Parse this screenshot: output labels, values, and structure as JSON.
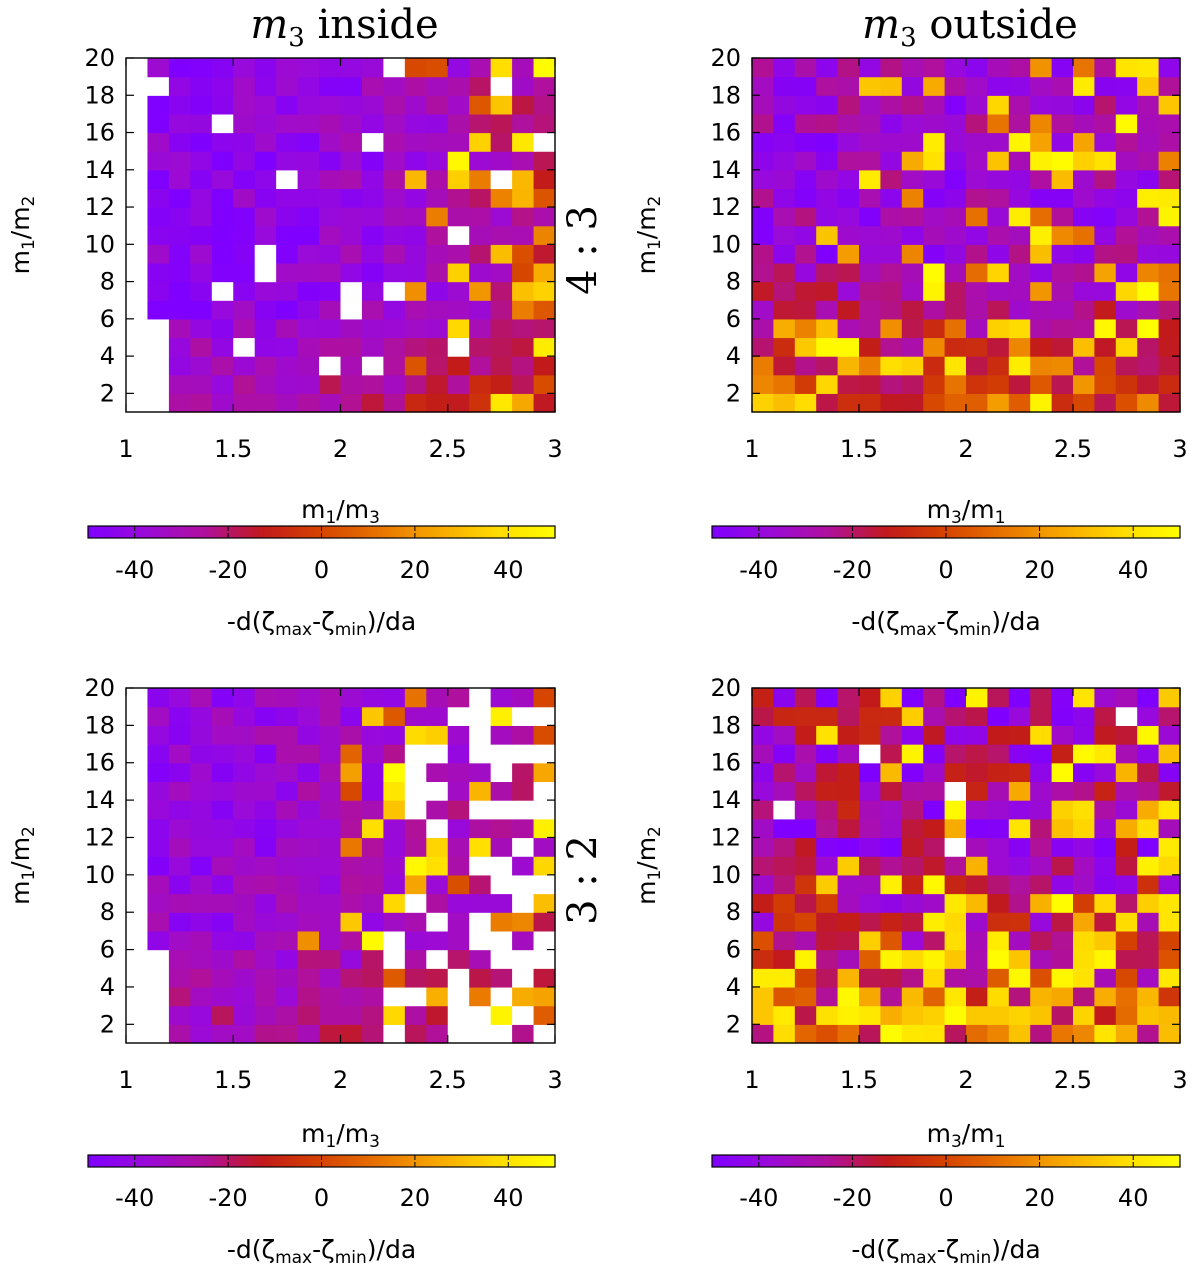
{
  "figure": {
    "columns": [
      {
        "title_symbol": "m",
        "title_sub": "3",
        "title_word": " inside",
        "text": "m3 inside"
      },
      {
        "title_symbol": "m",
        "title_sub": "3",
        "title_word": " outside",
        "text": "m3 outside"
      }
    ],
    "rows": [
      {
        "resonance_label": "4 : 3"
      },
      {
        "resonance_label": "3 : 2"
      }
    ],
    "colorbar": {
      "label": "-d(ζmax-ζmin)/da",
      "label_parts": [
        "-d(ζ",
        "max",
        "-ζ",
        "min",
        ")/da"
      ],
      "range": [
        -50,
        50
      ],
      "ticks": [
        -40,
        -20,
        0,
        20,
        40
      ],
      "tick_labels": [
        "-40",
        "-20",
        "0",
        "20",
        "40"
      ],
      "colormap": [
        "#7f00ff",
        "#9a0ad8",
        "#b0109c",
        "#c21a1a",
        "#d54400",
        "#e87400",
        "#f7a800",
        "#ffdb00",
        "#ffff00"
      ]
    }
  },
  "chart_data": [
    {
      "type": "heatmap",
      "id": "top-left",
      "panel": "4:3, m3 inside",
      "xlabel": "m1/m3",
      "ylabel": "m1/m2",
      "xlabel_parts": [
        "m",
        "1",
        "/m",
        "3"
      ],
      "ylabel_parts": [
        "m",
        "1",
        "/m",
        "2"
      ],
      "xlim": [
        1,
        3
      ],
      "ylim": [
        1,
        20
      ],
      "xticks": [
        1,
        1.5,
        2,
        2.5,
        3
      ],
      "xtick_labels": [
        "1",
        "1.5",
        "2",
        "2.5",
        "3"
      ],
      "yticks": [
        2,
        4,
        6,
        8,
        10,
        12,
        14,
        16,
        18,
        20
      ],
      "ytick_labels": [
        "2",
        "4",
        "6",
        "8",
        "10",
        "12",
        "14",
        "16",
        "18",
        "20"
      ],
      "color_label": "-d(ζmax-ζmin)/da",
      "color_range": [
        -50,
        50
      ],
      "grid": {
        "nx": 20,
        "ny": 19,
        "cell_dx": 0.1,
        "cell_dy": 1.0
      },
      "no_data_region": "white where m1/m3 < ~1.15 (and < ~1.25 for m1/m2 < 6)",
      "pattern": {
        "seed": 11,
        "base_start": -44,
        "base_end": -20,
        "base_gamma": 2.4,
        "low_m_boost": 18,
        "low_m_threshold": 6,
        "jitter": 10,
        "hot_start": 2.2,
        "hot_end": 3.0,
        "hot_frac_max": 0.55,
        "hot_min": 0,
        "hot_max": 50,
        "white_frac": 0.03,
        "empty_x_below": 1.15,
        "empty_x_below_low_m": 1.25,
        "empty_low_m_threshold": 6
      }
    },
    {
      "type": "heatmap",
      "id": "top-right",
      "panel": "4:3, m3 outside",
      "xlabel": "m3/m1",
      "ylabel": "m1/m2",
      "xlabel_parts": [
        "m",
        "3",
        "/m",
        "1"
      ],
      "ylabel_parts": [
        "m",
        "1",
        "/m",
        "2"
      ],
      "xlim": [
        1,
        3
      ],
      "ylim": [
        1,
        20
      ],
      "xticks": [
        1,
        1.5,
        2,
        2.5,
        3
      ],
      "xtick_labels": [
        "1",
        "1.5",
        "2",
        "2.5",
        "3"
      ],
      "yticks": [
        2,
        4,
        6,
        8,
        10,
        12,
        14,
        16,
        18,
        20
      ],
      "ytick_labels": [
        "2",
        "4",
        "6",
        "8",
        "10",
        "12",
        "14",
        "16",
        "18",
        "20"
      ],
      "color_label": "-d(ζmax-ζmin)/da",
      "color_range": [
        -50,
        50
      ],
      "grid": {
        "nx": 20,
        "ny": 19,
        "cell_dx": 0.1,
        "cell_dy": 1.0
      },
      "pattern": {
        "seed": 23,
        "base_start": -36,
        "base_end": -34,
        "base_gamma": 1.0,
        "low_m_boost": 32,
        "low_m_threshold": 9,
        "jitter": 14,
        "hot_start": 1.0,
        "hot_end": 3.0,
        "hot_frac_max": 0.35,
        "hot_min": 10,
        "hot_max": 50,
        "low_hot_frac": 0.35,
        "low_hot_threshold": 6,
        "white_frac": 0.0
      }
    },
    {
      "type": "heatmap",
      "id": "bottom-left",
      "panel": "3:2, m3 inside",
      "xlabel": "m1/m3",
      "ylabel": "m1/m2",
      "xlabel_parts": [
        "m",
        "1",
        "/m",
        "3"
      ],
      "ylabel_parts": [
        "m",
        "1",
        "/m",
        "2"
      ],
      "xlim": [
        1,
        3
      ],
      "ylim": [
        1,
        20
      ],
      "xticks": [
        1,
        1.5,
        2,
        2.5,
        3
      ],
      "xtick_labels": [
        "1",
        "1.5",
        "2",
        "2.5",
        "3"
      ],
      "yticks": [
        2,
        4,
        6,
        8,
        10,
        12,
        14,
        16,
        18,
        20
      ],
      "ytick_labels": [
        "2",
        "4",
        "6",
        "8",
        "10",
        "12",
        "14",
        "16",
        "18",
        "20"
      ],
      "color_label": "-d(ζmax-ζmin)/da",
      "color_range": [
        -50,
        50
      ],
      "grid": {
        "nx": 20,
        "ny": 19,
        "cell_dx": 0.1,
        "cell_dy": 1.0
      },
      "no_data_region": "white where m1/m3 < ~1.15 (and < ~1.25 for m1/m2 < 6); many white cells beyond m1/m3 ~ 2.3",
      "pattern": {
        "seed": 37,
        "base_start": -40,
        "base_end": -28,
        "base_gamma": 1.4,
        "low_m_boost": 12,
        "low_m_threshold": 8,
        "jitter": 10,
        "hot_start": 1.8,
        "hot_end": 3.0,
        "hot_frac_max": 0.45,
        "hot_min": 0,
        "hot_max": 50,
        "white_start": 2.2,
        "white_frac": 0.4,
        "empty_x_below": 1.15,
        "empty_x_below_low_m": 1.25,
        "empty_low_m_threshold": 6
      }
    },
    {
      "type": "heatmap",
      "id": "bottom-right",
      "panel": "3:2, m3 outside",
      "xlabel": "m3/m1",
      "ylabel": "m1/m2",
      "xlabel_parts": [
        "m",
        "3",
        "/m",
        "1"
      ],
      "ylabel_parts": [
        "m",
        "1",
        "/m",
        "2"
      ],
      "xlim": [
        1,
        3
      ],
      "ylim": [
        1,
        20
      ],
      "xticks": [
        1,
        1.5,
        2,
        2.5,
        3
      ],
      "xtick_labels": [
        "1",
        "1.5",
        "2",
        "2.5",
        "3"
      ],
      "yticks": [
        2,
        4,
        6,
        8,
        10,
        12,
        14,
        16,
        18,
        20
      ],
      "ytick_labels": [
        "2",
        "4",
        "6",
        "8",
        "10",
        "12",
        "14",
        "16",
        "18",
        "20"
      ],
      "color_label": "-d(ζmax-ζmin)/da",
      "color_range": [
        -50,
        50
      ],
      "grid": {
        "nx": 20,
        "ny": 19,
        "cell_dx": 0.1,
        "cell_dy": 1.0
      },
      "pattern": {
        "seed": 53,
        "base_start": -30,
        "base_end": -30,
        "base_gamma": 1.0,
        "low_m_boost": 28,
        "low_m_threshold": 11,
        "jitter": 22,
        "hot_start": 1.0,
        "hot_end": 3.0,
        "hot_frac_max": 0.45,
        "hot_min": 25,
        "hot_max": 50,
        "low_hot_frac": 0.5,
        "low_hot_threshold": 7,
        "white_frac": 0.004
      }
    }
  ]
}
